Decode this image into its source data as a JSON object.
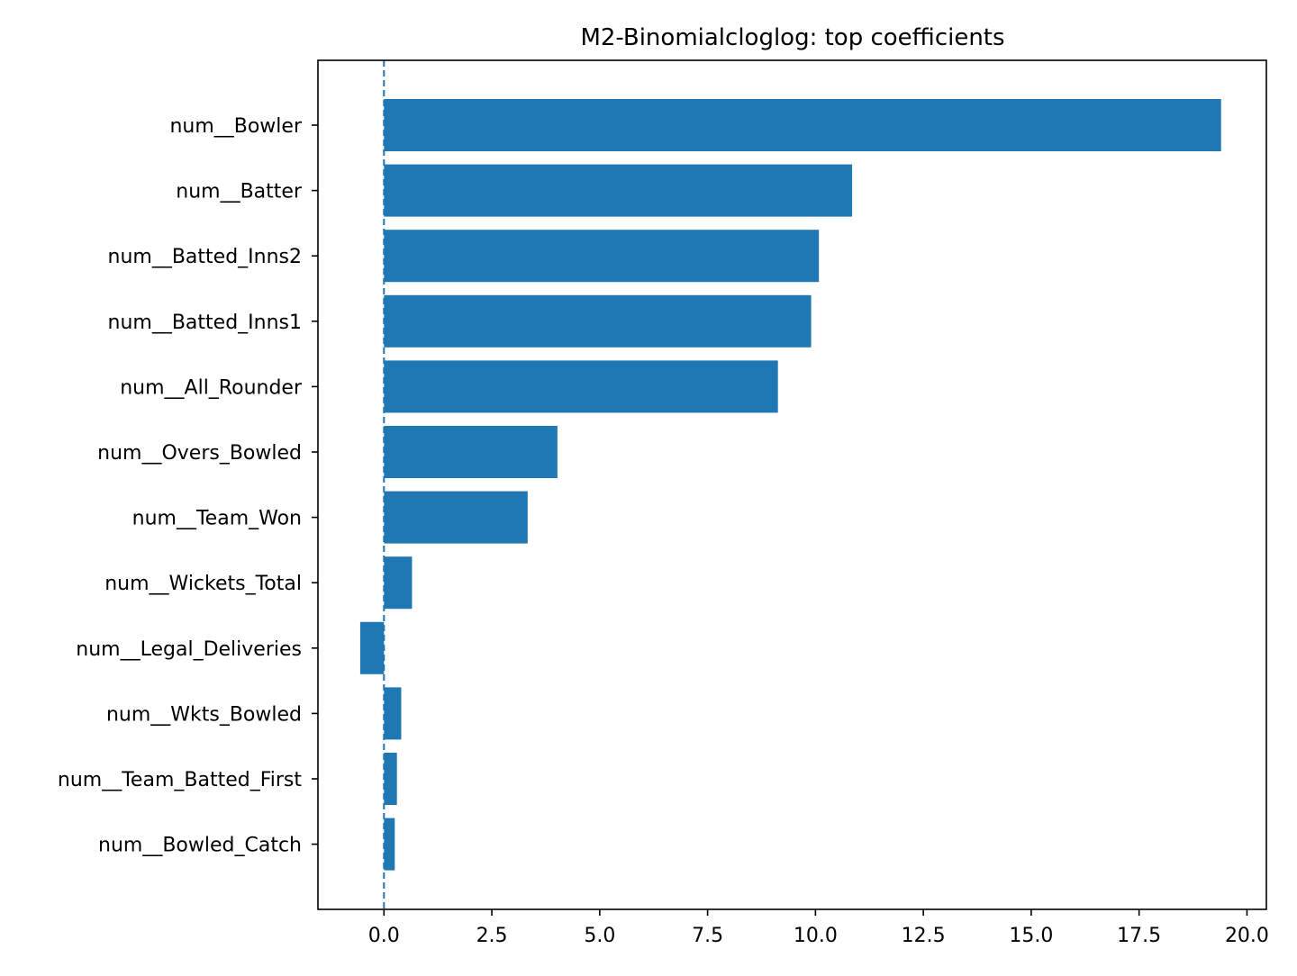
{
  "chart_data": {
    "type": "bar",
    "orientation": "horizontal",
    "title": "M2-Binomialcloglog: top coefficients",
    "xlabel": "",
    "ylabel": "",
    "categories": [
      "num__Bowler",
      "num__Batter",
      "num__Batted_Inns2",
      "num__Batted_Inns1",
      "num__All_Rounder",
      "num__Overs_Bowled",
      "num__Team_Won",
      "num__Wickets_Total",
      "num__Legal_Deliveries",
      "num__Wkts_Bowled",
      "num__Team_Batted_First",
      "num__Bowled_Catch"
    ],
    "values": [
      19.4,
      10.85,
      10.08,
      9.9,
      9.13,
      4.02,
      3.33,
      0.65,
      -0.55,
      0.4,
      0.3,
      0.25
    ],
    "xlim": [
      -1.53,
      20.45
    ],
    "xticks": [
      0.0,
      2.5,
      5.0,
      7.5,
      10.0,
      12.5,
      15.0,
      17.5,
      20.0
    ],
    "xtick_labels": [
      "0.0",
      "2.5",
      "5.0",
      "7.5",
      "10.0",
      "12.5",
      "15.0",
      "17.5",
      "20.0"
    ],
    "reference_line": {
      "x": 0,
      "style": "dashed"
    },
    "grid": false,
    "legend": "none",
    "bar_color": "#1f77b4",
    "ref_line_color": "#1f77b4"
  }
}
